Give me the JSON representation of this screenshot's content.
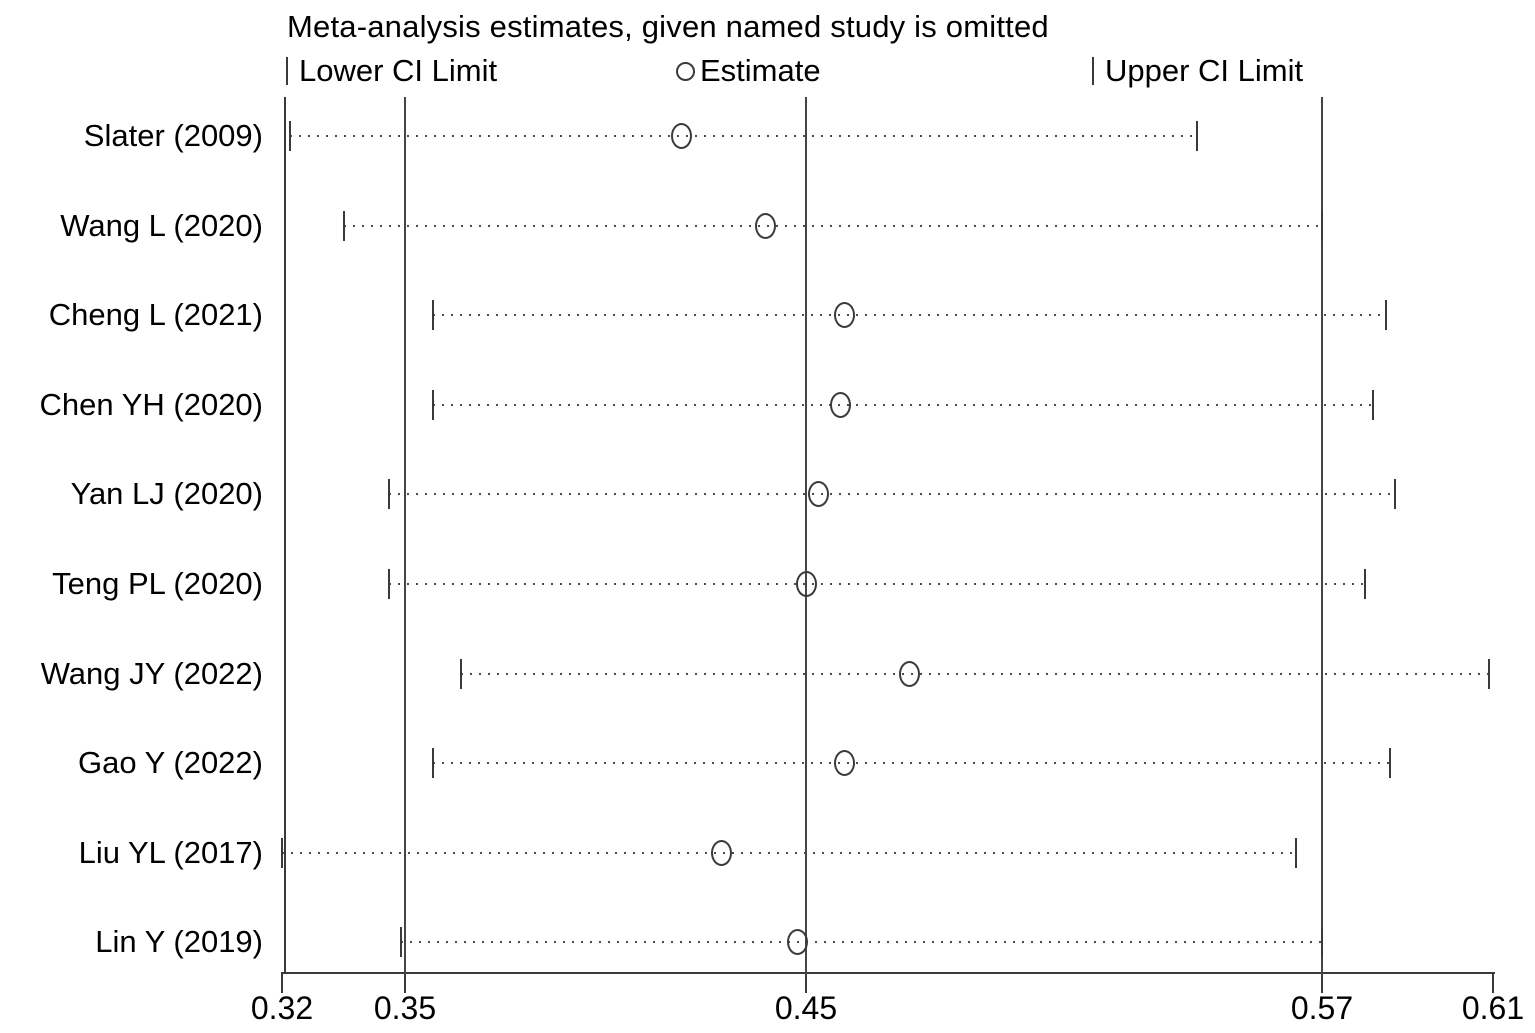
{
  "chart_data": {
    "type": "scatter",
    "chart_kind": "leave-one-out meta-analysis sensitivity (influence) plot",
    "title": "Meta-analysis estimates, given named study is omitted",
    "legend_entries": [
      "Lower CI Limit",
      "Estimate",
      "Upper CI Limit"
    ],
    "legend_position": "top",
    "studies": [
      "Slater (2009)",
      "Wang L (2020)",
      "Cheng L (2021)",
      "Chen YH (2020)",
      "Yan LJ (2020)",
      "Teng PL (2020)",
      "Wang JY (2022)",
      "Gao Y (2022)",
      "Liu YL (2017)",
      "Lin Y (2019)"
    ],
    "series": [
      {
        "name": "Lower CI Limit",
        "values": [
          0.322,
          0.335,
          0.357,
          0.357,
          0.346,
          0.346,
          0.364,
          0.357,
          0.32,
          0.349
        ]
      },
      {
        "name": "Estimate",
        "values": [
          0.419,
          0.44,
          0.459,
          0.458,
          0.453,
          0.45,
          0.474,
          0.459,
          0.429,
          0.448
        ]
      },
      {
        "name": "Upper CI Limit",
        "values": [
          0.541,
          0.57,
          0.585,
          0.582,
          0.587,
          0.58,
          0.609,
          0.586,
          0.564,
          0.57
        ]
      }
    ],
    "xlim": [
      0.32,
      0.61
    ],
    "x_ticks": [
      0.32,
      0.35,
      0.45,
      0.57,
      0.61
    ],
    "x_tick_labels": [
      "0.32",
      "0.35",
      "0.45",
      "0.57",
      "0.61"
    ],
    "gridlines_x": [
      0.35,
      0.45,
      0.57
    ],
    "grid": "vertical reference lines at 0.35, 0.45 and 0.57 only",
    "xlabel": "",
    "ylabel": ""
  },
  "style": {
    "background": "#ffffff",
    "text_color": "#000000",
    "line_color": "#3a3a3a",
    "dotted_leader_color": "#4c4c4c"
  }
}
